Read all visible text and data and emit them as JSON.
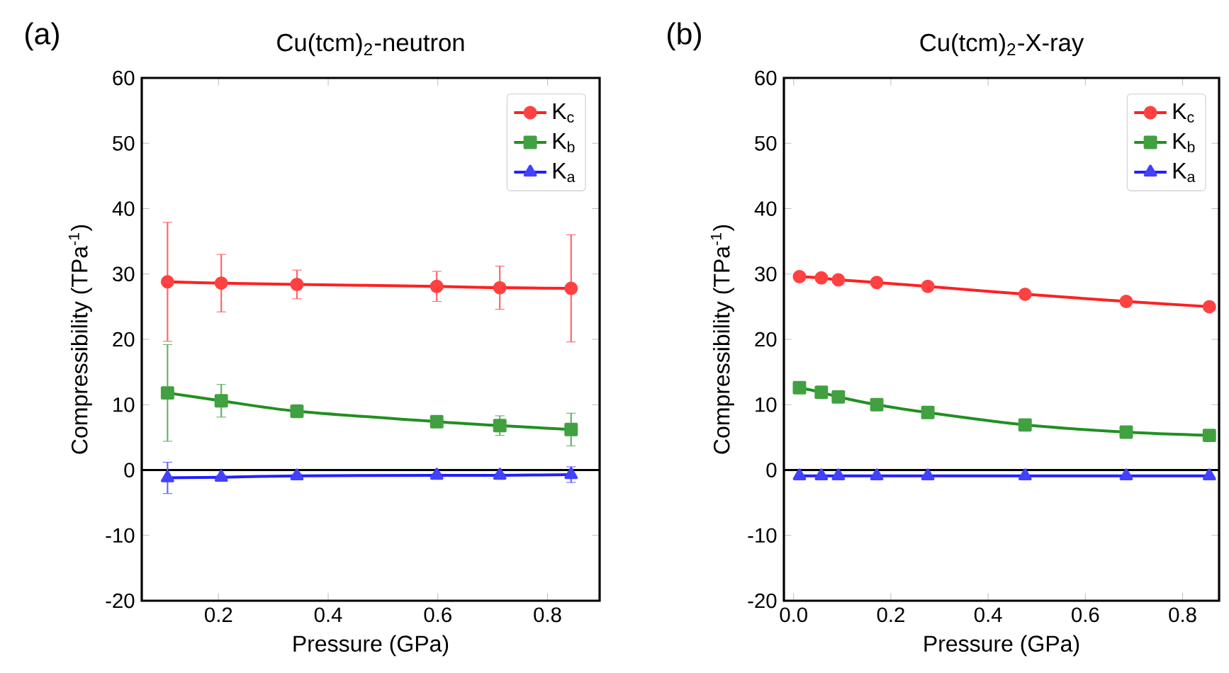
{
  "chart_data": [
    {
      "type": "line",
      "title": "Cu(tcm)$_{2}$-neutron",
      "xlabel": "Pressure (GPa)",
      "ylabel": "Compressibility (TPa$^{-1}$)",
      "annotations": [
        "(a)"
      ],
      "xlim": [
        0.06,
        0.895
      ],
      "xticks": [
        0.2,
        0.4,
        0.6,
        0.8
      ],
      "ylim": [
        -20,
        60
      ],
      "yticks": [
        -20,
        -10,
        0,
        10,
        20,
        30,
        40,
        50,
        60
      ],
      "grid": false,
      "legend": "top right",
      "ref_lines": [
        {
          "axis": "y",
          "value": 0,
          "color": "#000000"
        }
      ],
      "series": [
        {
          "name": "K$_{c}$",
          "color": "#ff2020",
          "marker": "circle",
          "x": [
            0.107,
            0.205,
            0.343,
            0.598,
            0.713,
            0.843
          ],
          "values": [
            28.8,
            28.6,
            28.4,
            28.1,
            27.9,
            27.8
          ],
          "errors": [
            9.1,
            4.4,
            2.2,
            2.3,
            3.3,
            8.2
          ]
        },
        {
          "name": "K$_{b}$",
          "color": "#209020",
          "marker": "square",
          "x": [
            0.107,
            0.205,
            0.343,
            0.598,
            0.713,
            0.843
          ],
          "values": [
            11.8,
            10.6,
            9.0,
            7.4,
            6.8,
            6.2
          ],
          "errors": [
            7.4,
            2.5,
            1.0,
            0.8,
            1.5,
            2.5
          ]
        },
        {
          "name": "K$_{a}$",
          "color": "#2020ff",
          "marker": "triangle",
          "x": [
            0.107,
            0.205,
            0.343,
            0.598,
            0.713,
            0.843
          ],
          "values": [
            -1.2,
            -1.1,
            -0.9,
            -0.8,
            -0.8,
            -0.7
          ],
          "errors": [
            2.4,
            0.3,
            0.3,
            0.3,
            0.3,
            1.2
          ]
        }
      ]
    },
    {
      "type": "line",
      "title": "Cu(tcm)$_{2}$-X-ray",
      "xlabel": "Pressure (GPa)",
      "ylabel": "Compressibility (TPa$^{-1}$)",
      "annotations": [
        "(b)"
      ],
      "xlim": [
        -0.02,
        0.875
      ],
      "xticks": [
        {
          "value": 0,
          "label": "0.0"
        },
        0.2,
        0.4,
        0.6,
        0.8
      ],
      "ylim": [
        -20,
        60
      ],
      "yticks": [
        -20,
        -10,
        0,
        10,
        20,
        30,
        40,
        50,
        60
      ],
      "grid": false,
      "legend": "top right",
      "ref_lines": [
        {
          "axis": "y",
          "value": 0,
          "color": "#000000"
        }
      ],
      "series": [
        {
          "name": "K$_{c}$",
          "color": "#ff2020",
          "marker": "circle",
          "x": [
            0.012,
            0.057,
            0.092,
            0.171,
            0.276,
            0.476,
            0.684,
            0.855
          ],
          "values": [
            29.6,
            29.4,
            29.1,
            28.7,
            28.1,
            26.9,
            25.8,
            25.0
          ]
        },
        {
          "name": "K$_{b}$",
          "color": "#209020",
          "marker": "square",
          "x": [
            0.012,
            0.057,
            0.092,
            0.171,
            0.276,
            0.476,
            0.684,
            0.855
          ],
          "values": [
            12.6,
            11.9,
            11.2,
            10.0,
            8.8,
            6.9,
            5.8,
            5.3
          ]
        },
        {
          "name": "K$_{a}$",
          "color": "#2020ff",
          "marker": "triangle",
          "x": [
            0.012,
            0.057,
            0.092,
            0.171,
            0.276,
            0.476,
            0.684,
            0.855
          ],
          "values": [
            -0.9,
            -0.9,
            -0.9,
            -0.9,
            -0.9,
            -0.9,
            -0.9,
            -0.9
          ]
        }
      ]
    }
  ]
}
